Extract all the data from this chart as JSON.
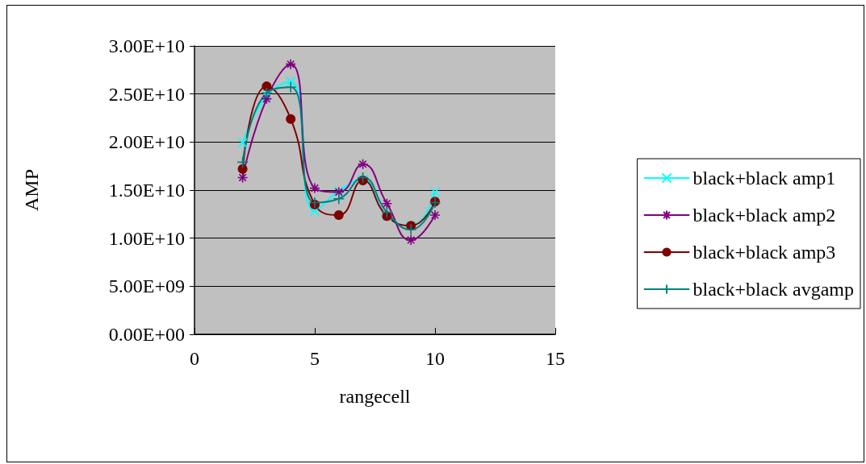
{
  "chart_data": {
    "type": "line",
    "xlabel": "rangecell",
    "ylabel": "AMP",
    "x": [
      2,
      3,
      4,
      5,
      6,
      7,
      8,
      9,
      10
    ],
    "series": [
      {
        "name": "black+black amp1",
        "color": "#00ffff",
        "marker": "x",
        "values": [
          19900000000,
          24800000000,
          26300000000,
          12800000000,
          14900000000,
          16100000000,
          12300000000,
          11300000000,
          14800000000
        ]
      },
      {
        "name": "black+black amp2",
        "color": "#800080",
        "marker": "cross",
        "values": [
          16300000000,
          24500000000,
          28100000000,
          15200000000,
          14800000000,
          17700000000,
          13600000000,
          9800000000,
          12400000000
        ]
      },
      {
        "name": "black+black amp3",
        "color": "#800000",
        "marker": "circle",
        "values": [
          17200000000,
          25800000000,
          22400000000,
          13500000000,
          12400000000,
          16000000000,
          12300000000,
          11300000000,
          13800000000
        ]
      },
      {
        "name": "black+black avgamp",
        "color": "#008080",
        "marker": "plus",
        "values": [
          17900000000,
          25100000000,
          25700000000,
          13700000000,
          14100000000,
          16300000000,
          12700000000,
          10900000000,
          13700000000
        ]
      }
    ],
    "xlim": [
      0,
      15
    ],
    "xticks": [
      0,
      5,
      10,
      15
    ],
    "ylim": [
      0,
      30000000000
    ],
    "yticks": [
      {
        "value": 0,
        "label": "0.00E+00"
      },
      {
        "value": 5000000000,
        "label": "5.00E+09"
      },
      {
        "value": 10000000000,
        "label": "1.00E+10"
      },
      {
        "value": 15000000000,
        "label": "1.50E+10"
      },
      {
        "value": 20000000000,
        "label": "2.00E+10"
      },
      {
        "value": 25000000000,
        "label": "2.50E+10"
      },
      {
        "value": 30000000000,
        "label": "3.00E+10"
      }
    ],
    "grid": "y",
    "legend": "right"
  }
}
